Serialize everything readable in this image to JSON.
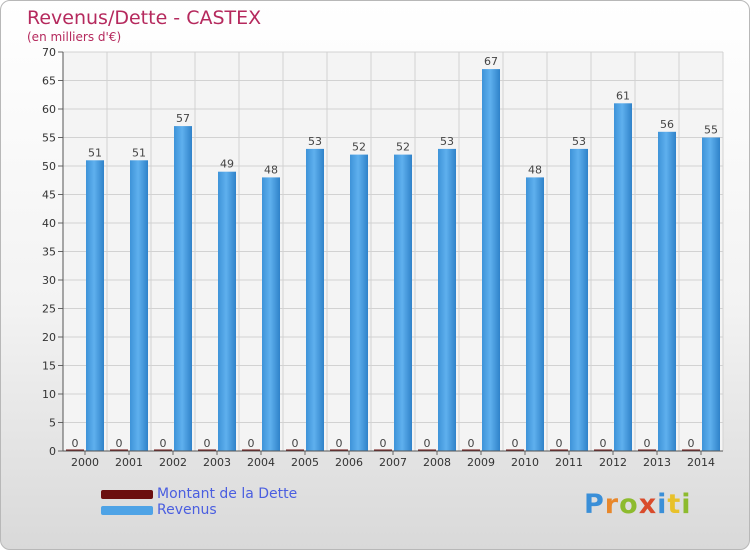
{
  "header": {
    "title": "Revenus/Dette - CASTEX",
    "subtitle": "(en milliers d'€)"
  },
  "chart_data": {
    "type": "bar",
    "categories": [
      "2000",
      "2001",
      "2002",
      "2003",
      "2004",
      "2005",
      "2006",
      "2007",
      "2008",
      "2009",
      "2010",
      "2011",
      "2012",
      "2013",
      "2014"
    ],
    "series": [
      {
        "name": "Montant de la Dette",
        "color": "#6b0f0f",
        "values": [
          0,
          0,
          0,
          0,
          0,
          0,
          0,
          0,
          0,
          0,
          0,
          0,
          0,
          0,
          0
        ]
      },
      {
        "name": "Revenus",
        "color": "#4ea3e6",
        "values": [
          51,
          51,
          57,
          49,
          48,
          53,
          52,
          52,
          53,
          67,
          48,
          53,
          61,
          56,
          55
        ]
      }
    ],
    "ylim": [
      0,
      70
    ],
    "yticks": [
      0,
      5,
      10,
      15,
      20,
      25,
      30,
      35,
      40,
      45,
      50,
      55,
      60,
      65,
      70
    ],
    "grid": true,
    "legend_position": "bottom-left",
    "data_labels": true
  },
  "logo": {
    "letters": [
      "P",
      "r",
      "o",
      "x",
      "i",
      "t",
      "i"
    ],
    "colors": [
      "#3a8fd8",
      "#e8872a",
      "#8dbb2e",
      "#d94b2b",
      "#3a8fd8",
      "#e8c12a",
      "#8dbb2e"
    ]
  }
}
